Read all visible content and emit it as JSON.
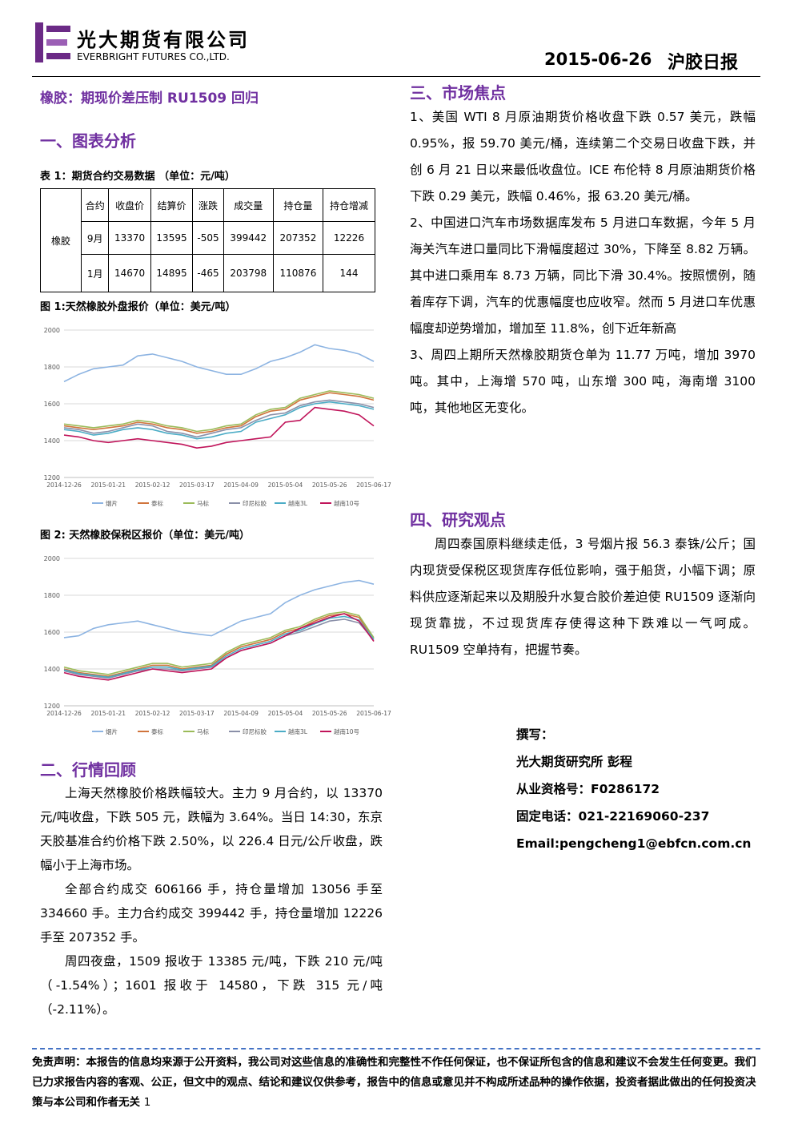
{
  "header": {
    "company": "光大期货有限公司",
    "company_en": "EVERBRIGHT FUTURES CO.,LTD.",
    "date": "2015-06-26",
    "report": "沪胶日报"
  },
  "headline": "橡胶：期现价差压制 RU1509 回归",
  "section1": "一、图表分析",
  "table": {
    "caption": "表 1：期货合约交易数据 （单位：元/吨）",
    "product": "橡胶",
    "header": [
      "合约",
      "收盘价",
      "结算价",
      "涨跌",
      "成交量",
      "持仓量",
      "持仓增减"
    ],
    "rows": [
      [
        "9月",
        13370,
        13595,
        -505,
        399442,
        207352,
        12226
      ],
      [
        "1月",
        14670,
        14895,
        -465,
        203798,
        110876,
        144
      ]
    ]
  },
  "chart_data": [
    {
      "type": "line",
      "title": "图 1:天然橡胶外盘报价（单位：美元/吨）",
      "grid": true,
      "legend": "bottom",
      "categories": [
        "2014-12-26",
        null,
        null,
        "2015-01-21",
        null,
        null,
        "2015-02-12",
        null,
        null,
        "2015-03-17",
        null,
        null,
        "2015-04-09",
        null,
        null,
        "2015-05-04",
        null,
        null,
        "2015-05-26",
        null,
        null,
        "2015-06-17"
      ],
      "ylim": [
        1200,
        2000
      ],
      "yticks": [
        1200,
        1400,
        1600,
        1800,
        2000
      ],
      "series": [
        {
          "name": "烟片",
          "color": "#8db4e2",
          "values": [
            1720,
            1760,
            1790,
            1800,
            1810,
            1860,
            1870,
            1850,
            1830,
            1800,
            1780,
            1760,
            1760,
            1790,
            1830,
            1850,
            1880,
            1920,
            1900,
            1890,
            1870,
            1830
          ]
        },
        {
          "name": "泰标",
          "color": "#d0743c",
          "values": [
            1480,
            1470,
            1460,
            1470,
            1480,
            1500,
            1490,
            1470,
            1460,
            1440,
            1450,
            1470,
            1480,
            1530,
            1560,
            1570,
            1620,
            1640,
            1660,
            1650,
            1640,
            1620
          ]
        },
        {
          "name": "马标",
          "color": "#9bbb59",
          "values": [
            1490,
            1480,
            1470,
            1480,
            1490,
            1510,
            1500,
            1480,
            1470,
            1450,
            1460,
            1480,
            1490,
            1540,
            1570,
            1580,
            1630,
            1650,
            1670,
            1660,
            1650,
            1630
          ]
        },
        {
          "name": "印尼标胶",
          "color": "#8a8fa8",
          "values": [
            1470,
            1460,
            1440,
            1450,
            1470,
            1490,
            1480,
            1450,
            1440,
            1420,
            1440,
            1460,
            1470,
            1510,
            1540,
            1550,
            1590,
            1610,
            1620,
            1610,
            1600,
            1580
          ]
        },
        {
          "name": "越南3L",
          "color": "#4bacc6",
          "values": [
            1460,
            1450,
            1430,
            1440,
            1460,
            1470,
            1460,
            1440,
            1430,
            1410,
            1420,
            1440,
            1450,
            1500,
            1520,
            1540,
            1580,
            1600,
            1610,
            1600,
            1590,
            1570
          ]
        },
        {
          "name": "越南10号",
          "color": "#c0145a",
          "values": [
            1430,
            1420,
            1400,
            1390,
            1400,
            1410,
            1400,
            1390,
            1380,
            1360,
            1370,
            1390,
            1400,
            1410,
            1420,
            1500,
            1510,
            1580,
            1570,
            1560,
            1540,
            1480
          ]
        }
      ]
    },
    {
      "type": "line",
      "title": "图 2: 天然橡胶保税区报价（单位：美元/吨）",
      "grid": true,
      "legend": "bottom",
      "categories": [
        "2014-12-26",
        null,
        null,
        "2015-01-21",
        null,
        null,
        "2015-02-12",
        null,
        null,
        "2015-03-17",
        null,
        null,
        "2015-04-09",
        null,
        null,
        "2015-05-04",
        null,
        null,
        "2015-05-26",
        null,
        null,
        "2015-06-17"
      ],
      "ylim": [
        1200,
        2000
      ],
      "yticks": [
        1200,
        1400,
        1600,
        1800,
        2000
      ],
      "series": [
        {
          "name": "烟片",
          "color": "#8db4e2",
          "values": [
            1570,
            1580,
            1620,
            1640,
            1650,
            1660,
            1640,
            1620,
            1600,
            1590,
            1580,
            1620,
            1660,
            1680,
            1700,
            1760,
            1800,
            1830,
            1850,
            1870,
            1880,
            1860
          ]
        },
        {
          "name": "泰标",
          "color": "#d0743c",
          "values": [
            1400,
            1380,
            1370,
            1360,
            1380,
            1400,
            1420,
            1420,
            1400,
            1410,
            1420,
            1480,
            1520,
            1540,
            1560,
            1600,
            1620,
            1660,
            1690,
            1700,
            1680,
            1560
          ]
        },
        {
          "name": "马标",
          "color": "#9bbb59",
          "values": [
            1410,
            1390,
            1380,
            1370,
            1390,
            1410,
            1430,
            1430,
            1410,
            1420,
            1430,
            1490,
            1530,
            1550,
            1570,
            1610,
            1630,
            1670,
            1700,
            1710,
            1690,
            1570
          ]
        },
        {
          "name": "印尼标胶",
          "color": "#8a8fa8",
          "values": [
            1390,
            1370,
            1360,
            1350,
            1370,
            1390,
            1400,
            1400,
            1390,
            1400,
            1410,
            1460,
            1500,
            1520,
            1540,
            1580,
            1600,
            1630,
            1660,
            1670,
            1650,
            1560
          ]
        },
        {
          "name": "越南3L",
          "color": "#4bacc6",
          "values": [
            1395,
            1375,
            1365,
            1355,
            1375,
            1395,
            1410,
            1410,
            1395,
            1405,
            1415,
            1470,
            1510,
            1530,
            1550,
            1590,
            1610,
            1645,
            1675,
            1685,
            1665,
            1560
          ]
        },
        {
          "name": "越南10号",
          "color": "#c0145a",
          "values": [
            1380,
            1360,
            1350,
            1340,
            1360,
            1380,
            1400,
            1390,
            1380,
            1390,
            1400,
            1460,
            1500,
            1520,
            1540,
            1580,
            1620,
            1650,
            1680,
            1700,
            1660,
            1550
          ]
        }
      ]
    }
  ],
  "section2": {
    "title": "二、行情回顾",
    "paragraphs": [
      "上海天然橡胶价格跌幅较大。主力 9 月合约，以 13370 元/吨收盘，下跌 505 元，跌幅为 3.64%。当日 14:30，东京天胶基准合约价格下跌 2.50%，以 226.4 日元/公斤收盘，跌幅小于上海市场。",
      "全部合约成交 606166 手，持仓量增加 13056 手至 334660 手。主力合约成交 399442 手，持仓量增加 12226 手至 207352 手。",
      "周四夜盘，1509 报收于 13385 元/吨，下跌 210 元/吨（-1.54%）；1601 报收于 14580，下跌 315 元/吨（-2.11%）。"
    ]
  },
  "section3": {
    "title": "三、市场焦点",
    "paragraphs": [
      "1、美国 WTI 8 月原油期货价格收盘下跌 0.57 美元，跌幅 0.95%，报 59.70 美元/桶，连续第二个交易日收盘下跌，并创 6 月 21 日以来最低收盘位。ICE 布伦特 8 月原油期货价格下跌 0.29 美元，跌幅 0.46%，报 63.20 美元/桶。",
      "2、中国进口汽车市场数据库发布 5 月进口车数据，今年 5 月海关汽车进口量同比下滑幅度超过 30%，下降至 8.82 万辆。其中进口乘用车 8.73 万辆，同比下滑 30.4%。按照惯例，随着库存下调，汽车的优惠幅度也应收窄。然而 5 月进口车优惠幅度却逆势增加，增加至 11.8%，创下近年新高",
      "3、周四上期所天然橡胶期货仓单为 11.77 万吨，增加 3970 吨。其中，上海增 570 吨，山东增 300 吨，海南增 3100 吨，其他地区无变化。"
    ]
  },
  "section4": {
    "title": "四、研究观点",
    "paragraphs": [
      "周四泰国原料继续走低，3 号烟片报 56.3 泰铢/公斤；国内现货受保税区现货库存低位影响，强于船货，小幅下调；原料供应逐渐起来以及期股升水复合胶价差迫使 RU1509 逐渐向现货靠拢，不过现货库存使得这种下跌难以一气呵成。RU1509 空单持有，把握节奏。"
    ]
  },
  "author": [
    "撰写：",
    "光大期货研究所 彭程",
    "从业资格号：F0286172",
    "固定电话：021-22169060-237",
    "Email:pengcheng1@ebfcn.com.cn"
  ],
  "footer": {
    "disclaimer": "免责声明：本报告的信息均来源于公开资料，我公司对这些信息的准确性和完整性不作任何保证，也不保证所包含的信息和建议不会发生任何变更。我们已力求报告内容的客观、公正，但文中的观点、结论和建议仅供参考，报告中的信息或意见并不构成所述品种的操作依据，投资者据此做出的任何投资决策与本公司和作者无关",
    "page": "1"
  }
}
